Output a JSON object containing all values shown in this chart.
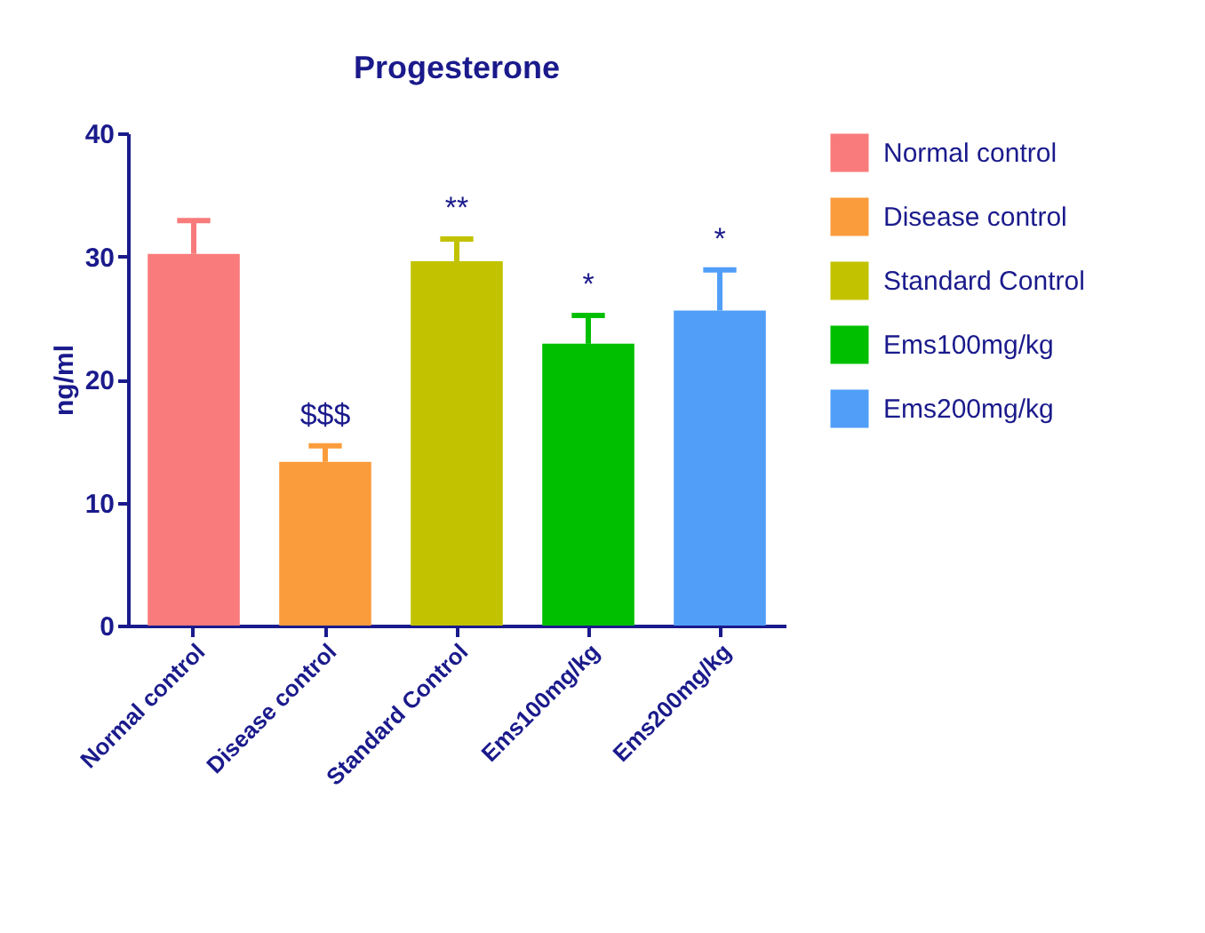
{
  "chart_data": {
    "type": "bar",
    "title": "Progesterone",
    "ylabel": "ng/ml",
    "stacked": true,
    "categories": [
      "Normal control",
      "Disease control",
      "Standard Control",
      "Ems100mg/kg",
      "Ems200mg/kg"
    ],
    "series": [
      {
        "name": "Normal control",
        "color": "#f97b7b",
        "values": [
          30.2,
          null,
          null,
          null,
          null
        ],
        "errors": [
          [
            30.2,
            32.9
          ],
          null,
          null,
          null,
          null
        ]
      },
      {
        "name": "Disease control",
        "color": "#fb9c3c",
        "values": [
          null,
          13.3,
          null,
          null,
          null
        ],
        "errors": [
          null,
          [
            13.3,
            14.6
          ],
          null,
          null,
          null
        ]
      },
      {
        "name": "Standard Control",
        "color": "#c2c200",
        "values": [
          null,
          null,
          29.6,
          null,
          null
        ],
        "errors": [
          null,
          null,
          [
            29.6,
            31.4
          ],
          null,
          null
        ]
      },
      {
        "name": "Ems100mg/kg",
        "color": "#00bf00",
        "values": [
          null,
          null,
          null,
          22.9,
          null
        ],
        "errors": [
          null,
          null,
          null,
          [
            22.9,
            25.2
          ],
          null
        ]
      },
      {
        "name": "Ems200mg/kg",
        "color": "#509ef8",
        "values": [
          null,
          null,
          null,
          null,
          25.6
        ],
        "errors": [
          null,
          null,
          null,
          null,
          [
            25.6,
            28.9
          ]
        ]
      }
    ],
    "ylim": [
      0,
      40
    ],
    "yticks": [
      0,
      10,
      20,
      30,
      40
    ],
    "annotations": [
      {
        "text": "$$$",
        "x": "Disease control",
        "y": 14.6
      },
      {
        "text": "**",
        "x": "Standard Control",
        "y": 31.4
      },
      {
        "text": "*",
        "x": "Ems100mg/kg",
        "y": 25.2
      },
      {
        "text": "*",
        "x": "Ems200mg/kg",
        "y": 28.9
      }
    ],
    "grid": false,
    "legend": "right"
  }
}
